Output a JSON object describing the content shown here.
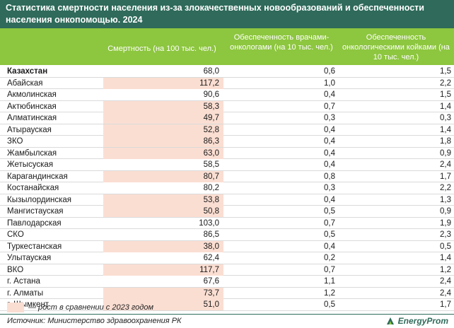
{
  "title": "Статистика смертности населения из-за злокачественных новообразований и обеспеченности населения онкопомощью. 2024",
  "columns": {
    "mortality": "Смертность (на 100 тыс. чел.)",
    "oncologists": "Обеспеченность врачами-онкологами (на 10 тыс. чел.)",
    "beds": "Обеспеченность онкологическими койками (на 10 тыс. чел.)"
  },
  "rows": [
    {
      "region": "Казахстан",
      "mortality": "68,0",
      "oncologists": "0,6",
      "beds": "1,5",
      "growth": false,
      "bold": true
    },
    {
      "region": "Абайская",
      "mortality": "117,2",
      "oncologists": "1,0",
      "beds": "2,2",
      "growth": true
    },
    {
      "region": "Акмолинская",
      "mortality": "90,6",
      "oncologists": "0,4",
      "beds": "1,5",
      "growth": false
    },
    {
      "region": "Актюбинская",
      "mortality": "58,3",
      "oncologists": "0,7",
      "beds": "1,4",
      "growth": true
    },
    {
      "region": "Алматинская",
      "mortality": "49,7",
      "oncologists": "0,3",
      "beds": "0,3",
      "growth": true
    },
    {
      "region": "Атырауская",
      "mortality": "52,8",
      "oncologists": "0,4",
      "beds": "1,4",
      "growth": true
    },
    {
      "region": "ЗКО",
      "mortality": "86,3",
      "oncologists": "0,4",
      "beds": "1,8",
      "growth": true
    },
    {
      "region": "Жамбылская",
      "mortality": "63,0",
      "oncologists": "0,4",
      "beds": "0,9",
      "growth": true
    },
    {
      "region": "Жетысуская",
      "mortality": "58,5",
      "oncologists": "0,4",
      "beds": "2,4",
      "growth": false
    },
    {
      "region": "Карагандинская",
      "mortality": "80,7",
      "oncologists": "0,8",
      "beds": "1,7",
      "growth": true
    },
    {
      "region": "Костанайская",
      "mortality": "80,2",
      "oncologists": "0,3",
      "beds": "2,2",
      "growth": false
    },
    {
      "region": "Кызылординская",
      "mortality": "53,8",
      "oncologists": "0,4",
      "beds": "1,3",
      "growth": true
    },
    {
      "region": "Мангистауская",
      "mortality": "50,8",
      "oncologists": "0,5",
      "beds": "0,9",
      "growth": true
    },
    {
      "region": "Павлодарская",
      "mortality": "103,0",
      "oncologists": "0,7",
      "beds": "1,9",
      "growth": false
    },
    {
      "region": "СКО",
      "mortality": "86,5",
      "oncologists": "0,5",
      "beds": "2,3",
      "growth": false
    },
    {
      "region": "Туркестанская",
      "mortality": "38,0",
      "oncologists": "0,4",
      "beds": "0,5",
      "growth": true
    },
    {
      "region": "Улытауская",
      "mortality": "62,4",
      "oncologists": "0,2",
      "beds": "1,4",
      "growth": false
    },
    {
      "region": "ВКО",
      "mortality": "117,7",
      "oncologists": "0,7",
      "beds": "1,2",
      "growth": true
    },
    {
      "region": "г. Астана",
      "mortality": "67,6",
      "oncologists": "1,1",
      "beds": "2,4",
      "growth": false
    },
    {
      "region": "г. Алматы",
      "mortality": "73,7",
      "oncologists": "1,2",
      "beds": "2,4",
      "growth": true
    },
    {
      "region": "г. Шымкент",
      "mortality": "51,0",
      "oncologists": "0,5",
      "beds": "1,7",
      "growth": true
    }
  ],
  "legend": {
    "text": "— рост в сравнении с 2023 годом",
    "color": "#fbded2"
  },
  "source": "Источник: Министерство здравоохранения РК",
  "logo": {
    "text": "EnergyProm",
    "icon": "energyprom-logo-icon"
  },
  "colors": {
    "title_bg": "#2f6a5a",
    "header_bg": "#8dc63f",
    "highlight": "#fbded2"
  }
}
